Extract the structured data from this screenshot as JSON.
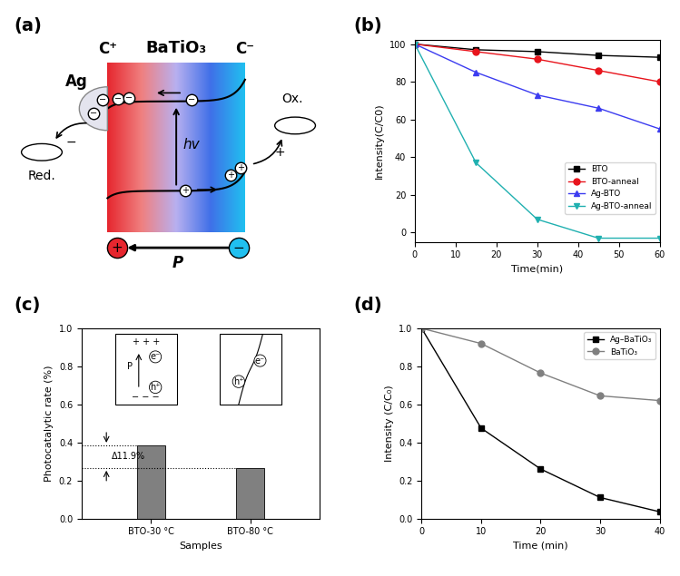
{
  "chart_data": [
    {
      "panel": "(a)",
      "type": "diagram",
      "texts": {
        "left_pole": "C⁺",
        "material": "BaTiO₃",
        "right_pole": "C⁻",
        "metal": "Ag",
        "reduction": "Red.",
        "oxidation": "Ox.",
        "photon": "hv",
        "polarization": "P",
        "electron": "−",
        "hole": "+"
      }
    },
    {
      "panel": "(b)",
      "type": "line",
      "x_label": "Time(min)",
      "y_label": "Intensity(C/C0)",
      "x": [
        0,
        15,
        30,
        45,
        60
      ],
      "series": [
        {
          "name": "BTO",
          "color": "#000000",
          "marker": "square",
          "values": [
            100,
            97,
            96,
            94,
            93
          ]
        },
        {
          "name": "BTO-anneal",
          "color": "#e8141c",
          "marker": "circle",
          "values": [
            100,
            96,
            92,
            86,
            80
          ]
        },
        {
          "name": "Ag-BTO",
          "color": "#3c3cf0",
          "marker": "triangle_up",
          "values": [
            100,
            85,
            73,
            66,
            55
          ]
        },
        {
          "name": "Ag-BTO-anneal",
          "color": "#20b0b0",
          "marker": "triangle_down",
          "values": [
            100,
            37,
            7,
            -3,
            -3
          ]
        }
      ],
      "xlim": [
        0,
        60
      ],
      "xticks": [
        0,
        10,
        20,
        30,
        40,
        50,
        60
      ],
      "ylim": [
        -5,
        102
      ],
      "yticks": [
        0,
        20,
        40,
        60,
        80,
        100
      ],
      "legend": "lower right"
    },
    {
      "panel": "(c)",
      "type": "bar",
      "x_label": "Samples",
      "y_label": "Photocatalytic rate (%)",
      "categories": [
        "BTO-30 °C",
        "BTO-80 °C"
      ],
      "values": [
        0.385,
        0.265
      ],
      "color": "#808080",
      "ylim": [
        0,
        1.0
      ],
      "yticks": [
        {
          "value": 0,
          "label": "0.0"
        },
        {
          "value": 0.2,
          "label": "0.2"
        },
        {
          "value": 0.4,
          "label": "0.4"
        },
        {
          "value": 0.6,
          "label": "0.6"
        },
        {
          "value": 0.8,
          "label": "0.8"
        },
        {
          "value": 1.0,
          "label": "1.0"
        }
      ],
      "annotation": "Δ11.9%",
      "inset_polar": {
        "top": "+ + +",
        "bottom": "− − −",
        "polarization": "P",
        "electron": "e⁻",
        "hole": "h⁺"
      },
      "inset_nonpolar": {
        "electron": "e⁻",
        "hole": "h⁺"
      }
    },
    {
      "panel": "(d)",
      "type": "line",
      "x_label": "Time (min)",
      "y_label": "Intensity (C/C₀)",
      "x": [
        0,
        10,
        20,
        30,
        40
      ],
      "series": [
        {
          "name": "Ag–BaTiO₃",
          "color": "#000000",
          "marker": "square",
          "values": [
            1.0,
            0.475,
            0.26,
            0.11,
            0.035
          ]
        },
        {
          "name": "BaTiO₃",
          "color": "#808080",
          "marker": "circle",
          "values": [
            1.0,
            0.92,
            0.765,
            0.645,
            0.62
          ]
        }
      ],
      "xlim": [
        0,
        40
      ],
      "xticks": [
        0,
        10,
        20,
        30,
        40
      ],
      "ylim": [
        0,
        1.0
      ],
      "yticks": [
        {
          "value": 0,
          "label": "0.0"
        },
        {
          "value": 0.2,
          "label": "0.2"
        },
        {
          "value": 0.4,
          "label": "0.4"
        },
        {
          "value": 0.6,
          "label": "0.6"
        },
        {
          "value": 0.8,
          "label": "0.8"
        },
        {
          "value": 1.0,
          "label": "1.0"
        }
      ],
      "legend": "upper right"
    }
  ]
}
